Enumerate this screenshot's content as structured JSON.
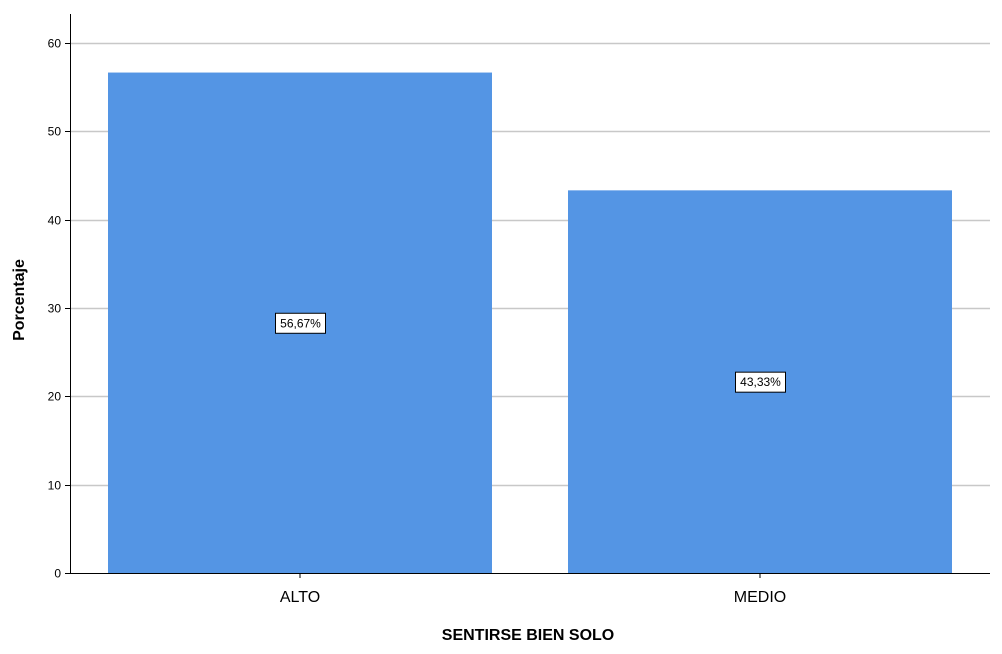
{
  "chart_data": {
    "type": "bar",
    "categories": [
      "ALTO",
      "MEDIO"
    ],
    "values": [
      56.67,
      43.33
    ],
    "data_labels": [
      "56,67%",
      "43,33%"
    ],
    "xlabel": "SENTIRSE BIEN SOLO",
    "ylabel": "Porcentaje",
    "ylim": [
      0,
      60
    ],
    "yticks": [
      0,
      10,
      20,
      30,
      40,
      50,
      60
    ],
    "ytick_labels": [
      "0",
      "10",
      "20",
      "30",
      "40",
      "50",
      "60"
    ],
    "grid": true,
    "legend": "none",
    "colors": {
      "bar": "#5495e4",
      "grid": "#c8c8c8",
      "axis": "#000000",
      "label_box_fill": "#ffffff",
      "label_box_stroke": "#000000"
    }
  }
}
